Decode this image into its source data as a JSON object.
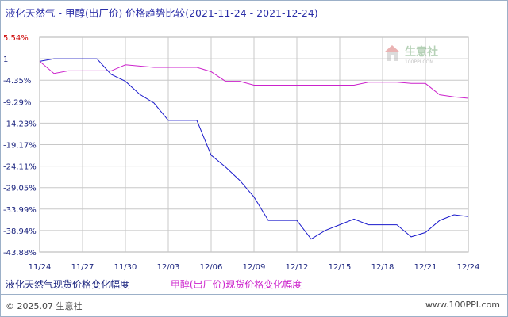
{
  "title": {
    "main": "液化天然气 - 甲醇(出厂价) 价格趋势比较",
    "range": "(2021-11-24 - 2021-12-24)"
  },
  "watermark": {
    "name": "生意社",
    "url": "100PPI.COM"
  },
  "footer": {
    "left": "© 2025.07 生意社",
    "right": "www.100PPI.com"
  },
  "colors": {
    "lng": "#1a1acc",
    "methanol": "#cc22cc",
    "grid": "#c8c8c8",
    "axis_text": "#1a237e",
    "top_tick": "#cc0000"
  },
  "chart_data": {
    "type": "line",
    "title": "液化天然气 - 甲醇(出厂价) 价格趋势比较",
    "xlabel": "",
    "ylabel": "",
    "y_unit": "%",
    "yticks": [
      "5.54%",
      "1",
      "-4.35%",
      "-9.29%",
      "-14.23%",
      "-19.17%",
      "-24.11%",
      "-29.05%",
      "-33.99%",
      "-38.94%",
      "-43.88%"
    ],
    "ytick_values": [
      5.54,
      0.6,
      -4.35,
      -9.29,
      -14.23,
      -19.17,
      -24.11,
      -29.05,
      -33.99,
      -38.94,
      -43.88
    ],
    "ylim": [
      -43.88,
      5.54
    ],
    "xticks": [
      "11/24",
      "11/27",
      "11/30",
      "12/03",
      "12/06",
      "12/09",
      "12/12",
      "12/15",
      "12/18",
      "12/21",
      "12/24"
    ],
    "grid": true,
    "legend_position": "bottom-left",
    "series": [
      {
        "name": "液化天然气现货价格变化幅度",
        "color": "#1a1acc",
        "x": [
          "11/24",
          "11/25",
          "11/26",
          "11/27",
          "11/28",
          "11/29",
          "11/30",
          "12/01",
          "12/02",
          "12/03",
          "12/04",
          "12/05",
          "12/06",
          "12/07",
          "12/08",
          "12/09",
          "12/10",
          "12/11",
          "12/12",
          "12/13",
          "12/14",
          "12/15",
          "12/16",
          "12/17",
          "12/18",
          "12/19",
          "12/20",
          "12/21",
          "12/22",
          "12/23",
          "12/24"
        ],
        "values": [
          0.0,
          0.6,
          0.6,
          0.6,
          0.6,
          -3.0,
          -4.6,
          -7.6,
          -9.6,
          -13.6,
          -13.6,
          -13.6,
          -21.6,
          -24.3,
          -27.4,
          -31.2,
          -36.6,
          -36.6,
          -36.6,
          -40.9,
          -38.9,
          -37.6,
          -36.3,
          -37.6,
          -37.6,
          -37.6,
          -40.4,
          -39.4,
          -36.6,
          -35.3,
          -35.7
        ]
      },
      {
        "name": "甲醇(出厂价)现货价格变化幅度",
        "color": "#cc22cc",
        "x": [
          "11/24",
          "11/25",
          "11/26",
          "11/27",
          "11/28",
          "11/29",
          "11/30",
          "12/01",
          "12/02",
          "12/03",
          "12/04",
          "12/05",
          "12/06",
          "12/07",
          "12/08",
          "12/09",
          "12/10",
          "12/11",
          "12/12",
          "12/13",
          "12/14",
          "12/15",
          "12/16",
          "12/17",
          "12/18",
          "12/19",
          "12/20",
          "12/21",
          "12/22",
          "12/23",
          "12/24"
        ],
        "values": [
          0.0,
          -2.8,
          -2.2,
          -2.2,
          -2.2,
          -2.2,
          -0.8,
          -1.1,
          -1.4,
          -1.4,
          -1.4,
          -1.4,
          -2.4,
          -4.6,
          -4.6,
          -5.5,
          -5.5,
          -5.5,
          -5.5,
          -5.5,
          -5.5,
          -5.5,
          -5.5,
          -4.8,
          -4.8,
          -4.8,
          -5.1,
          -5.1,
          -7.7,
          -8.2,
          -8.5
        ]
      }
    ]
  },
  "legend": [
    {
      "label": "液化天然气现货价格变化幅度",
      "color": "#1a1acc"
    },
    {
      "label": "甲醇(出厂价)现货价格变化幅度",
      "color": "#cc22cc"
    }
  ]
}
